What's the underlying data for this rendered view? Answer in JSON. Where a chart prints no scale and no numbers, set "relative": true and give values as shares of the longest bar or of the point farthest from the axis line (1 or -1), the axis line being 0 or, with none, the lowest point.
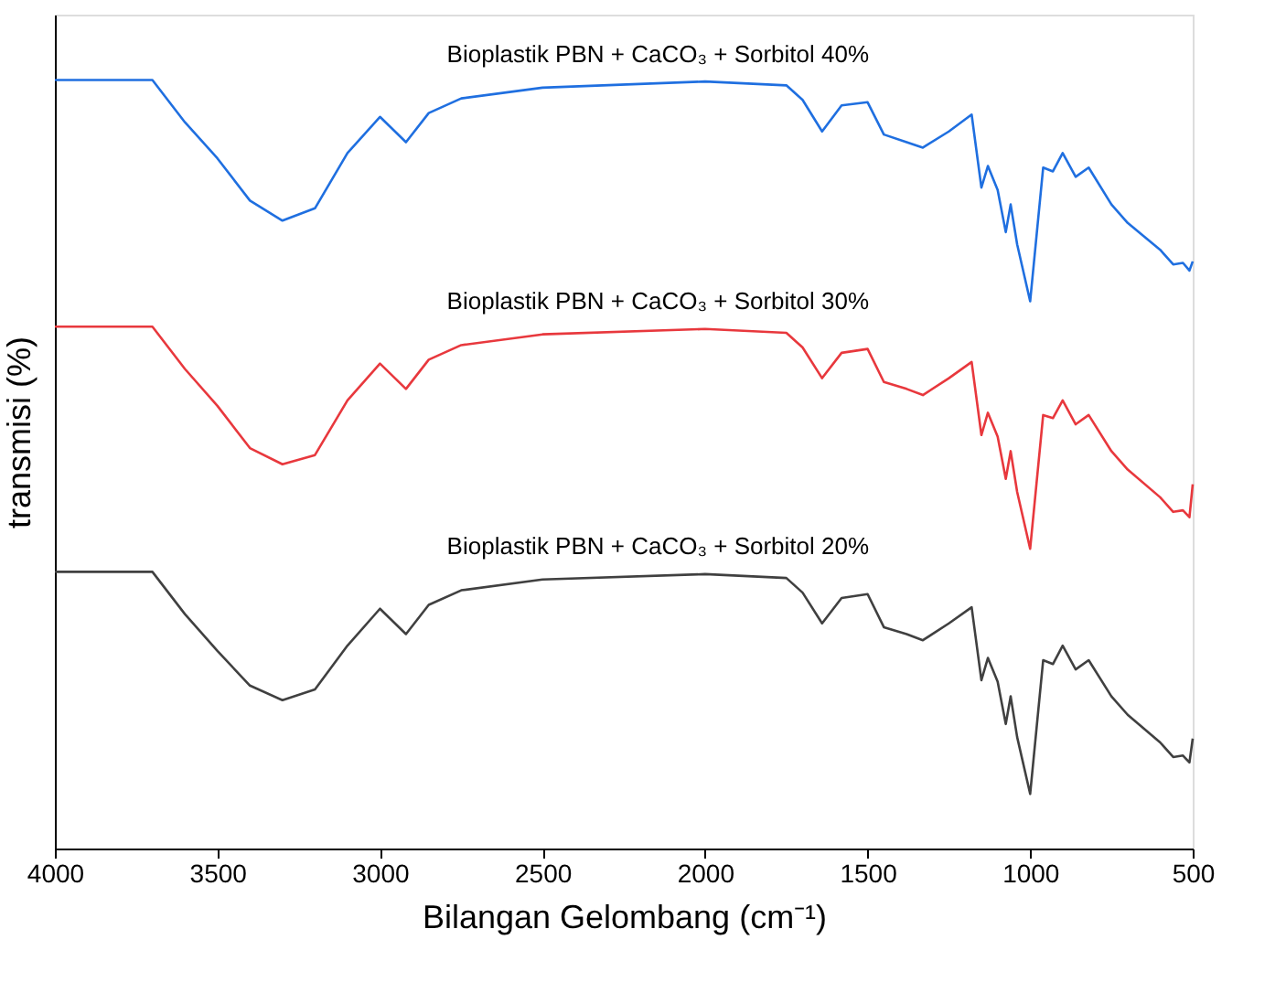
{
  "chart_data": {
    "type": "line",
    "relative": true,
    "xlabel": "Bilangan Gelombang (cm⁻¹)",
    "ylabel": "transmisi (%)",
    "xlim": [
      4000,
      500
    ],
    "xticks": [
      4000,
      3500,
      3000,
      2500,
      2000,
      1500,
      1000,
      500
    ],
    "tick_labels": "x",
    "grid": false,
    "marker": "none",
    "line_style": "solid",
    "x": [
      4000,
      3700,
      3600,
      3500,
      3400,
      3300,
      3200,
      3100,
      3000,
      2920,
      2850,
      2750,
      2500,
      2000,
      1750,
      1700,
      1640,
      1580,
      1500,
      1450,
      1380,
      1330,
      1250,
      1180,
      1150,
      1130,
      1100,
      1075,
      1060,
      1040,
      1000,
      960,
      930,
      900,
      860,
      820,
      750,
      700,
      600,
      560,
      530,
      510,
      500
    ],
    "series": [
      {
        "name": "Bioplastik PBN + CaCO₃ + Sorbitol 40%",
        "color": "#1f6fe0",
        "values": [
          1.0,
          1.0,
          0.945,
          0.898,
          0.843,
          0.817,
          0.833,
          0.905,
          0.952,
          0.919,
          0.957,
          0.976,
          0.99,
          0.998,
          0.993,
          0.974,
          0.933,
          0.967,
          0.971,
          0.929,
          0.919,
          0.912,
          0.933,
          0.955,
          0.86,
          0.888,
          0.857,
          0.802,
          0.838,
          0.786,
          0.712,
          0.886,
          0.881,
          0.905,
          0.874,
          0.886,
          0.838,
          0.814,
          0.779,
          0.76,
          0.762,
          0.752,
          0.764
        ]
      },
      {
        "name": "Bioplastik PBN + CaCO₃ + Sorbitol 30%",
        "color": "#e8383d",
        "values": [
          0.679,
          0.679,
          0.624,
          0.576,
          0.521,
          0.5,
          0.512,
          0.583,
          0.631,
          0.598,
          0.636,
          0.655,
          0.669,
          0.676,
          0.671,
          0.652,
          0.612,
          0.645,
          0.65,
          0.607,
          0.598,
          0.59,
          0.612,
          0.633,
          0.538,
          0.567,
          0.536,
          0.481,
          0.517,
          0.464,
          0.39,
          0.564,
          0.56,
          0.583,
          0.552,
          0.564,
          0.517,
          0.493,
          0.457,
          0.438,
          0.44,
          0.431,
          0.474
        ]
      },
      {
        "name": "Bioplastik PBN + CaCO₃ + Sorbitol 20%",
        "color": "#404040",
        "values": [
          0.36,
          0.36,
          0.305,
          0.257,
          0.212,
          0.193,
          0.207,
          0.264,
          0.312,
          0.279,
          0.317,
          0.336,
          0.35,
          0.357,
          0.352,
          0.333,
          0.293,
          0.326,
          0.331,
          0.288,
          0.279,
          0.271,
          0.293,
          0.314,
          0.219,
          0.248,
          0.217,
          0.162,
          0.198,
          0.145,
          0.071,
          0.245,
          0.24,
          0.264,
          0.233,
          0.245,
          0.198,
          0.174,
          0.138,
          0.119,
          0.121,
          0.112,
          0.143
        ]
      }
    ]
  }
}
